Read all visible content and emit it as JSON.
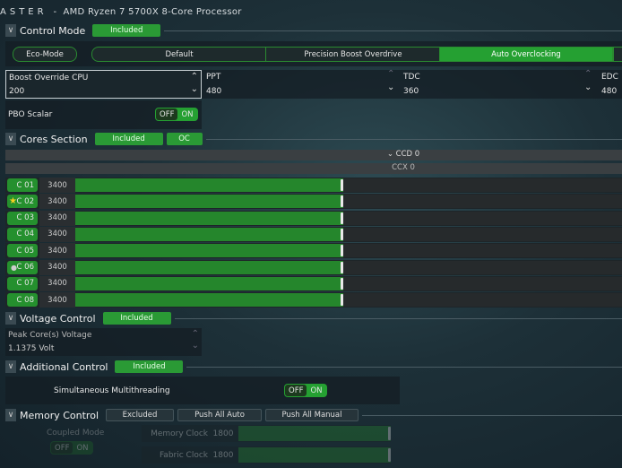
{
  "window": {
    "title_brand": "ASTER",
    "title_sep": "-",
    "processor": "AMD Ryzen 7 5700X 8-Core Processor"
  },
  "control_mode": {
    "title": "Control Mode",
    "status": "Included",
    "modes": [
      {
        "label": "Eco-Mode",
        "selected": false
      },
      {
        "label": "Default",
        "selected": false
      },
      {
        "label": "Precision Boost Overdrive",
        "selected": false
      },
      {
        "label": "Auto Overclocking",
        "selected": true
      }
    ],
    "boost_override": {
      "label": "Boost Override CPU",
      "value": "200"
    },
    "ppt": {
      "label": "PPT",
      "value": "480"
    },
    "tdc": {
      "label": "TDC",
      "value": "360"
    },
    "edc": {
      "label": "EDC",
      "value": "480"
    },
    "pbo_scalar": {
      "label": "PBO Scalar",
      "off": "OFF",
      "on": "ON",
      "state": "on"
    }
  },
  "cores": {
    "title": "Cores Section",
    "status": "Included",
    "oc": "OC",
    "ccd": "CCD 0",
    "ccx": "CCX 0",
    "slider_level": 0.49,
    "items": [
      {
        "label": "C 01",
        "freq": "3400",
        "marker": ""
      },
      {
        "label": "C 02",
        "freq": "3400",
        "marker": "star"
      },
      {
        "label": "C 03",
        "freq": "3400",
        "marker": ""
      },
      {
        "label": "C 04",
        "freq": "3400",
        "marker": ""
      },
      {
        "label": "C 05",
        "freq": "3400",
        "marker": ""
      },
      {
        "label": "C 06",
        "freq": "3400",
        "marker": "dot"
      },
      {
        "label": "C 07",
        "freq": "3400",
        "marker": ""
      },
      {
        "label": "C 08",
        "freq": "3400",
        "marker": ""
      }
    ]
  },
  "voltage": {
    "title": "Voltage Control",
    "status": "Included",
    "field_label": "Peak Core(s) Voltage",
    "value": "1.1375 Volt"
  },
  "additional": {
    "title": "Additional Control",
    "status": "Included",
    "smt_label": "Simultaneous Multithreading",
    "off": "OFF",
    "on": "ON",
    "state": "on"
  },
  "memory": {
    "title": "Memory Control",
    "status": "Excluded",
    "push_auto": "Push All Auto",
    "push_manual": "Push All Manual",
    "coupled_label": "Coupled Mode",
    "off": "OFF",
    "on": "ON",
    "memory_clock": {
      "label": "Memory Clock",
      "value": "1800"
    },
    "fabric_clock": {
      "label": "Fabric Clock",
      "value": "1800"
    }
  },
  "colors": {
    "accent": "#25a032",
    "background": "#1d3038"
  }
}
